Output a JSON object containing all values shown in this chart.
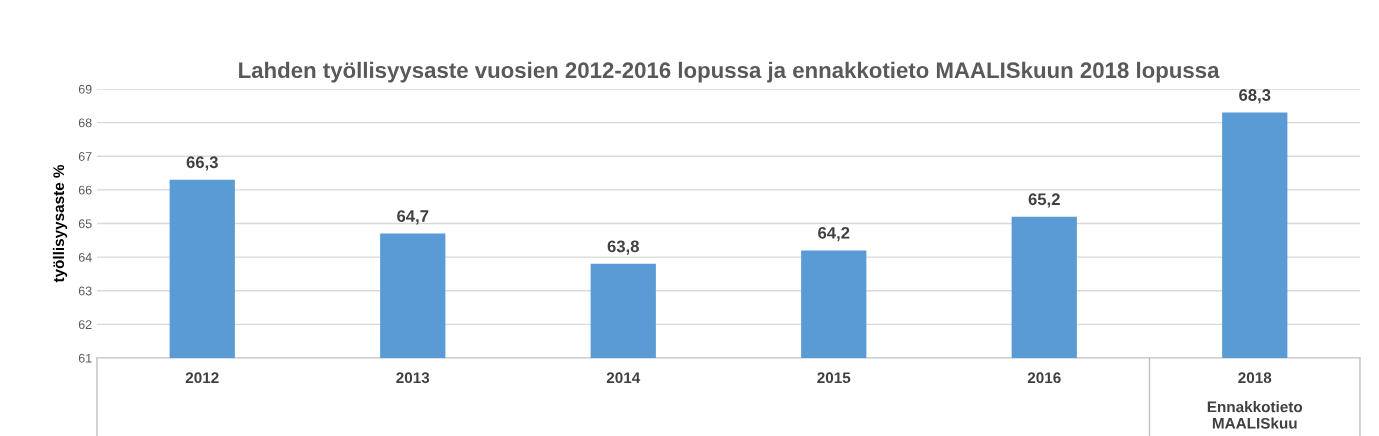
{
  "chart_data": {
    "type": "bar",
    "title": "Lahden työllisyysaste vuosien 2012-2016 lopussa ja ennakkotieto MAALISkuun 2018 lopussa",
    "ylabel": "työllisyysaste %",
    "categories": [
      "2012",
      "2013",
      "2014",
      "2015",
      "2016",
      "2018"
    ],
    "values": [
      66.3,
      64.7,
      63.8,
      64.2,
      65.2,
      68.3
    ],
    "value_labels": [
      "66,3",
      "64,7",
      "63,8",
      "64,2",
      "65,2",
      "68,3"
    ],
    "color": "#5b9bd5",
    "ylim": [
      61,
      69
    ],
    "yticks": [
      61,
      62,
      63,
      64,
      65,
      66,
      67,
      68,
      69
    ],
    "grid": "y",
    "annotations": [
      "Ennakkotieto\nMAALISkuu"
    ]
  }
}
